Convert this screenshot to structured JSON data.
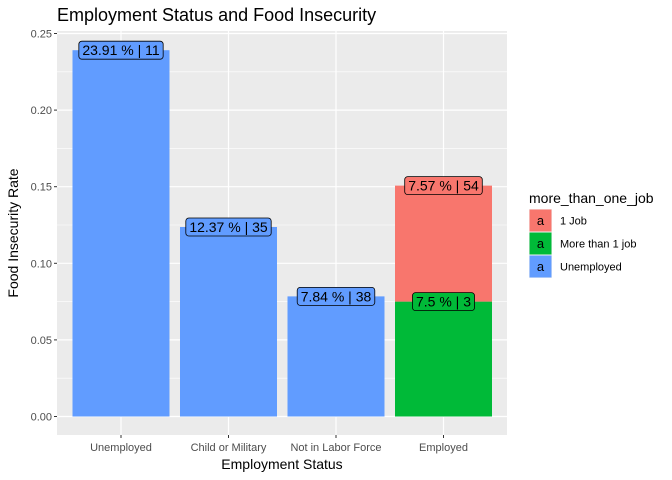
{
  "chart_data": {
    "type": "bar",
    "title": "Employment Status and Food Insecurity",
    "xlabel": "Employment Status",
    "ylabel": "Food Insecurity Rate",
    "ylim": [
      0,
      0.25
    ],
    "yticks": [
      "0.00",
      "0.05",
      "0.10",
      "0.15",
      "0.20",
      "0.25"
    ],
    "categories": [
      "Unemployed",
      "Child or Military",
      "Not in Labor Force",
      "Employed"
    ],
    "grid": true,
    "legend": {
      "title": "more_than_one_job",
      "placement": "right",
      "key_glyph": "a",
      "entries": [
        {
          "name": "1 Job",
          "color": "#F8766D"
        },
        {
          "name": "More than 1 job",
          "color": "#00BA38"
        },
        {
          "name": "Unemployed",
          "color": "#619CFF"
        }
      ]
    },
    "bars": [
      {
        "category": "Unemployed",
        "series": "Unemployed",
        "color": "#619CFF",
        "base": 0,
        "value": 0.2391,
        "label": "23.91 % | 11"
      },
      {
        "category": "Child or Military",
        "series": "Unemployed",
        "color": "#619CFF",
        "base": 0,
        "value": 0.1237,
        "label": "12.37 % | 35"
      },
      {
        "category": "Not in Labor Force",
        "series": "Unemployed",
        "color": "#619CFF",
        "base": 0,
        "value": 0.0784,
        "label": "7.84 % | 38"
      },
      {
        "category": "Employed",
        "series": "More than 1 job",
        "color": "#00BA38",
        "base": 0,
        "value": 0.075,
        "label": "7.5 % | 3"
      },
      {
        "category": "Employed",
        "series": "1 Job",
        "color": "#F8766D",
        "base": 0.075,
        "value": 0.0757,
        "label": "7.57 % | 54"
      }
    ]
  }
}
